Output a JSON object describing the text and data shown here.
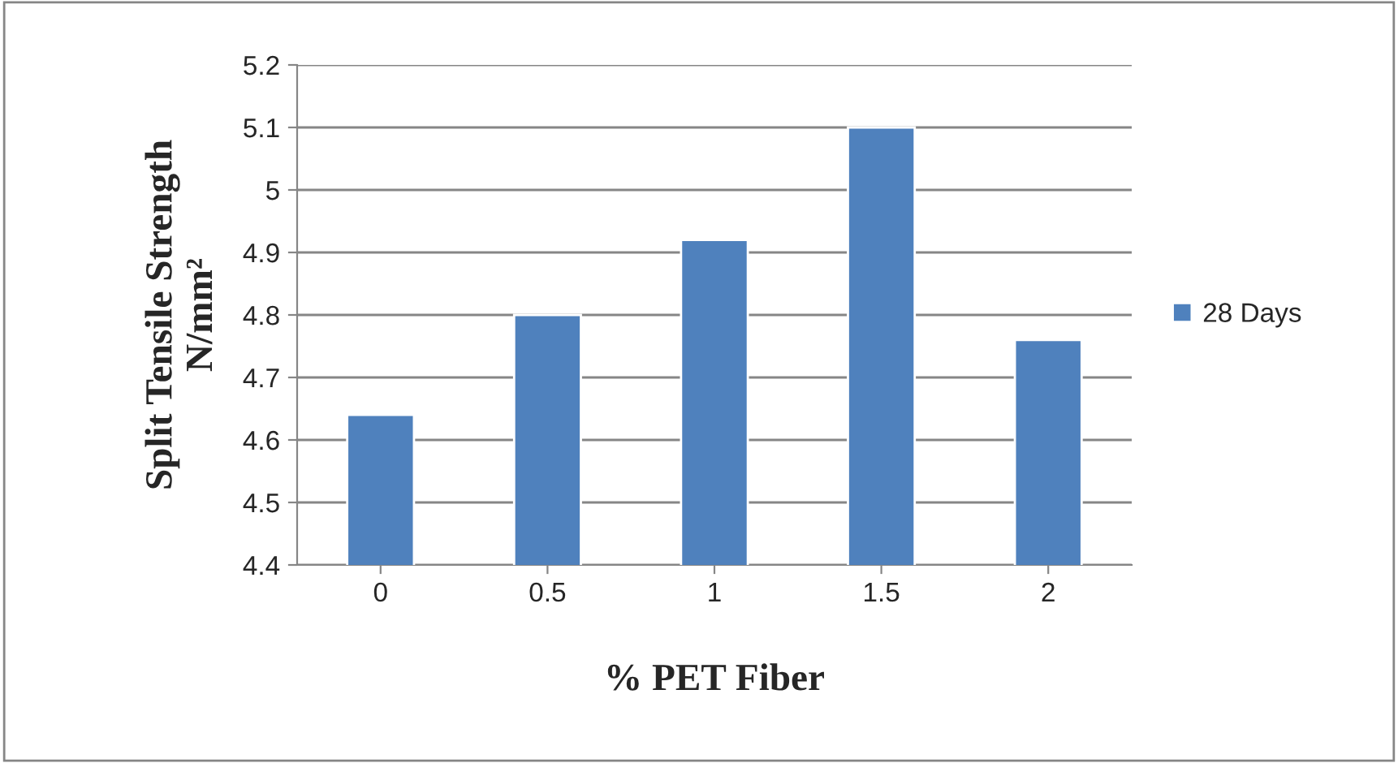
{
  "chart_data": {
    "type": "bar",
    "xlabel": "% PET Fiber",
    "ylabel": "Split Tensile Strength\nN/mm²",
    "categories": [
      "0",
      "0.5",
      "1",
      "1.5",
      "2"
    ],
    "series": [
      {
        "name": "28 Days",
        "color": "#4f81bd",
        "values": [
          4.64,
          4.8,
          4.92,
          5.1,
          4.76
        ]
      }
    ],
    "ylim": [
      4.4,
      5.2
    ],
    "yticks": [
      4.4,
      4.5,
      4.6,
      4.7,
      4.8,
      4.9,
      5,
      5.1,
      5.2
    ],
    "grid": "y",
    "legend": "right"
  }
}
